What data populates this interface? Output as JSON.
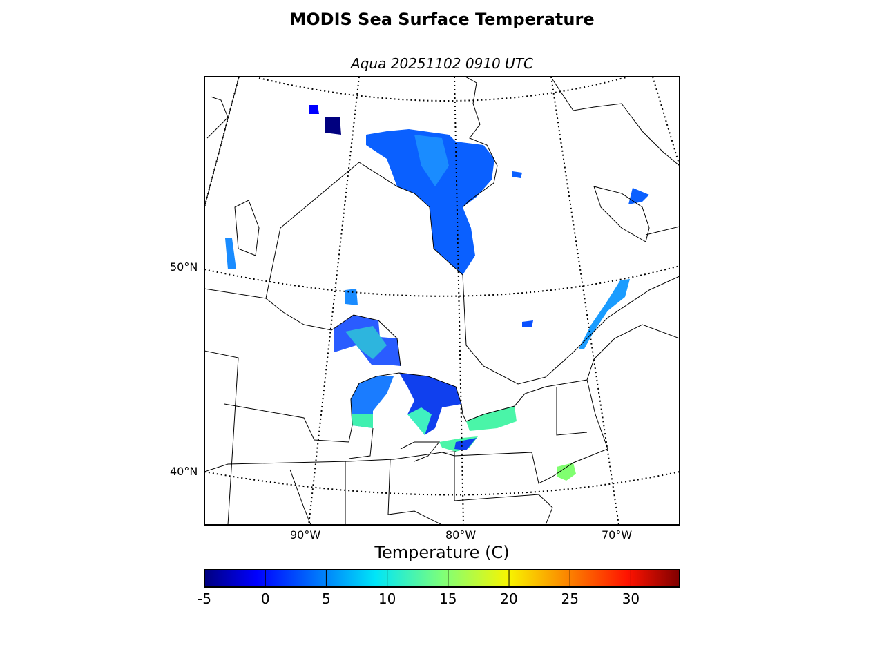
{
  "title": "MODIS Sea Surface Temperature",
  "subtitle": "Aqua 20251102 0910 UTC",
  "map": {
    "projection": "conic",
    "lat_labels": [
      "50°N",
      "40°N"
    ],
    "lon_labels": [
      "90°W",
      "80°W",
      "70°W"
    ],
    "graticule_style": "dotted",
    "colormap": "jet",
    "land_color": "#ffffff",
    "coastline_color": "#000000"
  },
  "chart_data": {
    "type": "heatmap",
    "title": "MODIS Sea Surface Temperature",
    "subtitle": "Aqua 20251102 0910 UTC",
    "colorbar": {
      "label": "Temperature (C)",
      "range": [
        -5,
        34
      ],
      "ticks": [
        "-5",
        "0",
        "5",
        "10",
        "15",
        "20",
        "25",
        "30"
      ],
      "colormap": "jet",
      "orientation": "horizontal"
    }
  }
}
